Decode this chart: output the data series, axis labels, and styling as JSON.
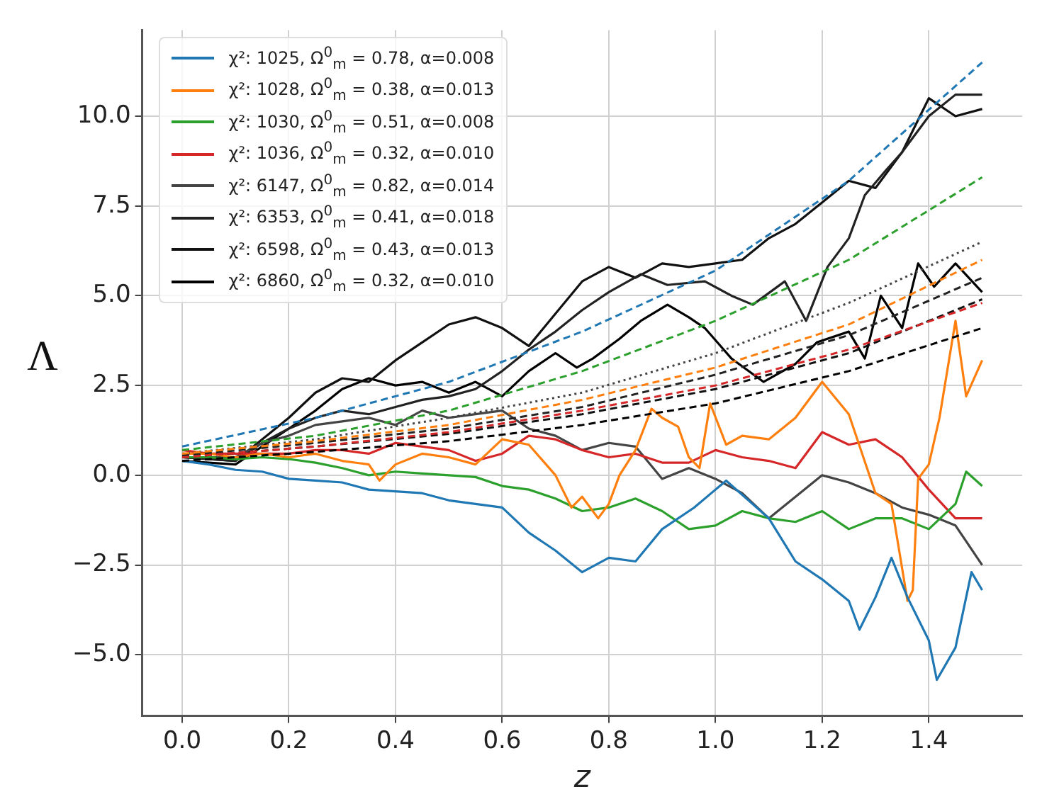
{
  "chart_data": {
    "type": "line",
    "xlabel": "z",
    "ylabel": "Λ",
    "xlim": [
      -0.075,
      1.575
    ],
    "ylim": [
      -6.7,
      12.4
    ],
    "xticks": [
      {
        "value": 0,
        "label": "0.0"
      },
      0.2,
      0.4,
      0.6,
      0.8,
      {
        "value": 1,
        "label": "1.0"
      },
      1.2,
      1.4
    ],
    "yticks": [
      {
        "value": -5,
        "label": "−5.0"
      },
      {
        "value": -2.5,
        "label": "−2.5"
      },
      {
        "value": 0,
        "label": "0.0"
      },
      2.5,
      {
        "value": 5,
        "label": "5.0"
      },
      7.5,
      {
        "value": 10,
        "label": "10.0"
      }
    ],
    "grid": true,
    "legend": "top left",
    "marker": "none",
    "series": [
      {
        "color": "#1f77b4",
        "line_style": "dashed",
        "x": [
          0,
          0.25,
          0.5,
          0.75,
          1.0,
          1.25,
          1.5
        ],
        "values": [
          0.8,
          1.6,
          2.6,
          4.0,
          5.7,
          8.2,
          11.5
        ]
      },
      {
        "color": "#ff7f0e",
        "line_style": "dashed",
        "x": [
          0,
          0.25,
          0.5,
          0.75,
          1.0,
          1.25,
          1.5
        ],
        "values": [
          0.6,
          0.95,
          1.4,
          2.1,
          3.0,
          4.2,
          6.0
        ]
      },
      {
        "color": "#2ca02c",
        "line_style": "dashed",
        "x": [
          0,
          0.25,
          0.5,
          0.75,
          1.0,
          1.25,
          1.5
        ],
        "values": [
          0.7,
          1.1,
          1.8,
          2.9,
          4.3,
          6.0,
          8.3
        ]
      },
      {
        "color": "#d62728",
        "line_style": "dashed",
        "x": [
          0,
          0.25,
          0.5,
          0.75,
          1.0,
          1.25,
          1.5
        ],
        "values": [
          0.5,
          0.8,
          1.2,
          1.8,
          2.5,
          3.5,
          4.8
        ]
      },
      {
        "color": "#444444",
        "line_style": "dotted",
        "x": [
          0,
          0.25,
          0.5,
          0.75,
          1.0,
          1.25,
          1.5
        ],
        "values": [
          0.6,
          1.0,
          1.6,
          2.3,
          3.4,
          4.8,
          6.5
        ]
      },
      {
        "color": "#222222",
        "line_style": "dashed",
        "x": [
          0,
          0.25,
          0.5,
          0.75,
          1.0,
          1.25,
          1.5
        ],
        "values": [
          0.55,
          0.9,
          1.3,
          1.9,
          2.8,
          3.9,
          5.5
        ]
      },
      {
        "color": "#111111",
        "line_style": "dashed",
        "x": [
          0,
          0.25,
          0.5,
          0.75,
          1.0,
          1.25,
          1.5
        ],
        "values": [
          0.5,
          0.8,
          1.15,
          1.7,
          2.4,
          3.4,
          4.9
        ]
      },
      {
        "color": "#000000",
        "line_style": "dashed",
        "x": [
          0,
          0.25,
          0.5,
          0.75,
          1.0,
          1.25,
          1.5
        ],
        "values": [
          0.4,
          0.65,
          0.95,
          1.4,
          2.0,
          2.9,
          4.1
        ]
      },
      {
        "name": "χ²: 1025, Ω$^{0}$$_{m}$ = 0.78, α=0.008",
        "color": "#1f77b4",
        "line_style": "solid",
        "x": [
          0,
          0.05,
          0.1,
          0.15,
          0.2,
          0.25,
          0.3,
          0.35,
          0.4,
          0.45,
          0.5,
          0.55,
          0.6,
          0.65,
          0.7,
          0.75,
          0.8,
          0.85,
          0.9,
          0.96,
          1.0,
          1.02,
          1.1,
          1.15,
          1.2,
          1.25,
          1.27,
          1.3,
          1.33,
          1.36,
          1.4,
          1.415,
          1.45,
          1.48,
          1.5
        ],
        "values": [
          0.4,
          0.3,
          0.15,
          0.1,
          -0.1,
          -0.15,
          -0.2,
          -0.4,
          -0.45,
          -0.5,
          -0.7,
          -0.8,
          -0.9,
          -1.6,
          -2.1,
          -2.7,
          -2.3,
          -2.4,
          -1.5,
          -0.9,
          -0.4,
          -0.15,
          -1.2,
          -2.4,
          -2.9,
          -3.5,
          -4.3,
          -3.4,
          -2.3,
          -3.4,
          -4.6,
          -5.7,
          -4.8,
          -2.7,
          -3.2
        ]
      },
      {
        "name": "χ²: 1028, Ω$^{0}$$_{m}$ = 0.38, α=0.013",
        "color": "#ff7f0e",
        "line_style": "solid",
        "x": [
          0,
          0.05,
          0.1,
          0.15,
          0.2,
          0.25,
          0.3,
          0.35,
          0.37,
          0.4,
          0.45,
          0.5,
          0.55,
          0.6,
          0.65,
          0.7,
          0.73,
          0.75,
          0.78,
          0.8,
          0.82,
          0.85,
          0.88,
          0.9,
          0.93,
          0.95,
          0.97,
          0.99,
          1.02,
          1.05,
          1.1,
          1.15,
          1.2,
          1.25,
          1.3,
          1.33,
          1.36,
          1.37,
          1.38,
          1.4,
          1.42,
          1.45,
          1.47,
          1.5
        ],
        "values": [
          0.6,
          0.6,
          0.5,
          0.6,
          0.5,
          0.6,
          0.4,
          0.3,
          -0.15,
          0.3,
          0.6,
          0.5,
          0.3,
          1.0,
          0.85,
          0.0,
          -0.9,
          -0.6,
          -1.2,
          -0.8,
          0.0,
          0.7,
          1.85,
          1.6,
          1.35,
          0.5,
          0.2,
          2.0,
          0.85,
          1.1,
          1.0,
          1.6,
          2.6,
          1.7,
          -0.5,
          -0.8,
          -3.5,
          -3.2,
          -0.1,
          0.3,
          1.6,
          4.3,
          2.2,
          3.2
        ]
      },
      {
        "name": "χ²: 1030, Ω$^{0}$$_{m}$ = 0.51, α=0.008",
        "color": "#2ca02c",
        "line_style": "solid",
        "x": [
          0,
          0.05,
          0.1,
          0.15,
          0.2,
          0.25,
          0.3,
          0.35,
          0.4,
          0.45,
          0.5,
          0.55,
          0.6,
          0.65,
          0.7,
          0.75,
          0.8,
          0.85,
          0.9,
          0.95,
          1.0,
          1.05,
          1.1,
          1.15,
          1.2,
          1.25,
          1.3,
          1.35,
          1.4,
          1.45,
          1.47,
          1.5
        ],
        "values": [
          0.5,
          0.5,
          0.45,
          0.5,
          0.45,
          0.35,
          0.2,
          0.0,
          0.1,
          0.05,
          0.0,
          -0.05,
          -0.3,
          -0.4,
          -0.65,
          -1.0,
          -0.9,
          -0.65,
          -1.0,
          -1.5,
          -1.4,
          -1.0,
          -1.2,
          -1.3,
          -1.0,
          -1.5,
          -1.2,
          -1.2,
          -1.5,
          -0.8,
          0.1,
          -0.3
        ]
      },
      {
        "name": "χ²: 1036, Ω$^{0}$$_{m}$ = 0.32, α=0.010",
        "color": "#d62728",
        "line_style": "solid",
        "x": [
          0,
          0.05,
          0.1,
          0.15,
          0.2,
          0.25,
          0.3,
          0.35,
          0.4,
          0.45,
          0.5,
          0.55,
          0.6,
          0.65,
          0.7,
          0.75,
          0.8,
          0.85,
          0.9,
          0.95,
          1.0,
          1.05,
          1.1,
          1.15,
          1.2,
          1.25,
          1.3,
          1.35,
          1.4,
          1.45,
          1.5
        ],
        "values": [
          0.7,
          0.6,
          0.6,
          0.6,
          0.6,
          0.7,
          0.7,
          0.6,
          0.9,
          0.8,
          0.7,
          0.4,
          0.6,
          1.1,
          1.0,
          0.7,
          0.5,
          0.6,
          0.35,
          0.35,
          0.7,
          0.5,
          0.4,
          0.2,
          1.2,
          0.85,
          1.0,
          0.5,
          -0.4,
          -1.2,
          -1.2
        ]
      },
      {
        "name": "χ²: 6147, Ω$^{0}$$_{m}$ = 0.82, α=0.014",
        "color": "#444444",
        "line_style": "solid",
        "x": [
          0,
          0.1,
          0.15,
          0.2,
          0.25,
          0.3,
          0.35,
          0.4,
          0.45,
          0.5,
          0.55,
          0.6,
          0.65,
          0.7,
          0.75,
          0.8,
          0.85,
          0.9,
          0.95,
          1.0,
          1.05,
          1.1,
          1.15,
          1.2,
          1.25,
          1.3,
          1.35,
          1.4,
          1.45,
          1.5
        ],
        "values": [
          0.5,
          0.5,
          0.9,
          1.1,
          1.4,
          1.5,
          1.6,
          1.4,
          1.8,
          1.6,
          1.7,
          1.8,
          1.3,
          1.1,
          0.7,
          0.9,
          0.8,
          -0.1,
          0.2,
          -0.1,
          -0.5,
          -1.2,
          -0.6,
          0.0,
          -0.2,
          -0.5,
          -0.9,
          -1.1,
          -1.4,
          -2.5
        ]
      },
      {
        "name": "χ²: 6353, Ω$^{0}$$_{m}$ = 0.41, α=0.018",
        "color": "#222222",
        "line_style": "solid",
        "x": [
          0,
          0.1,
          0.15,
          0.2,
          0.25,
          0.3,
          0.35,
          0.4,
          0.45,
          0.5,
          0.55,
          0.6,
          0.65,
          0.7,
          0.75,
          0.8,
          0.86,
          0.91,
          0.98,
          1.03,
          1.07,
          1.13,
          1.17,
          1.21,
          1.25,
          1.28,
          1.32,
          1.35,
          1.4,
          1.45,
          1.5
        ],
        "values": [
          0.5,
          0.4,
          0.9,
          1.3,
          1.6,
          1.8,
          1.7,
          1.9,
          2.1,
          2.2,
          2.4,
          2.9,
          3.5,
          4.0,
          4.6,
          5.1,
          5.6,
          5.3,
          5.4,
          5.0,
          4.75,
          5.4,
          4.3,
          5.8,
          6.6,
          7.8,
          8.5,
          9.0,
          10.0,
          10.6,
          10.6
        ]
      },
      {
        "name": "χ²: 6598, Ω$^{0}$$_{m}$ = 0.43, α=0.013",
        "color": "#111111",
        "line_style": "solid",
        "x": [
          0,
          0.1,
          0.15,
          0.2,
          0.25,
          0.3,
          0.35,
          0.4,
          0.45,
          0.5,
          0.55,
          0.6,
          0.65,
          0.7,
          0.75,
          0.8,
          0.85,
          0.9,
          0.95,
          1.0,
          1.05,
          1.1,
          1.15,
          1.2,
          1.25,
          1.3,
          1.35,
          1.4,
          1.45,
          1.5
        ],
        "values": [
          0.5,
          0.4,
          1.0,
          1.6,
          2.3,
          2.7,
          2.6,
          3.2,
          3.7,
          4.2,
          4.4,
          4.1,
          3.6,
          4.5,
          5.4,
          5.8,
          5.5,
          5.9,
          5.8,
          5.9,
          6.0,
          6.6,
          7.0,
          7.6,
          8.2,
          8.0,
          9.0,
          10.5,
          10.0,
          10.2
        ]
      },
      {
        "name": "χ²: 6860, Ω$^{0}$$_{m}$ = 0.32, α=0.010",
        "color": "#000000",
        "line_style": "solid",
        "x": [
          0,
          0.1,
          0.15,
          0.2,
          0.25,
          0.3,
          0.35,
          0.4,
          0.45,
          0.5,
          0.55,
          0.6,
          0.65,
          0.7,
          0.74,
          0.77,
          0.82,
          0.86,
          0.91,
          0.95,
          0.98,
          1.03,
          1.09,
          1.15,
          1.19,
          1.25,
          1.28,
          1.31,
          1.35,
          1.38,
          1.41,
          1.45,
          1.5
        ],
        "values": [
          0.4,
          0.3,
          0.8,
          1.3,
          1.8,
          2.4,
          2.7,
          2.5,
          2.6,
          2.3,
          2.6,
          2.2,
          2.9,
          3.4,
          3.0,
          3.25,
          3.8,
          4.3,
          4.75,
          4.4,
          4.1,
          3.25,
          2.6,
          3.1,
          3.7,
          4.0,
          3.25,
          5.0,
          4.1,
          5.9,
          5.25,
          5.9,
          5.1
        ]
      }
    ]
  }
}
